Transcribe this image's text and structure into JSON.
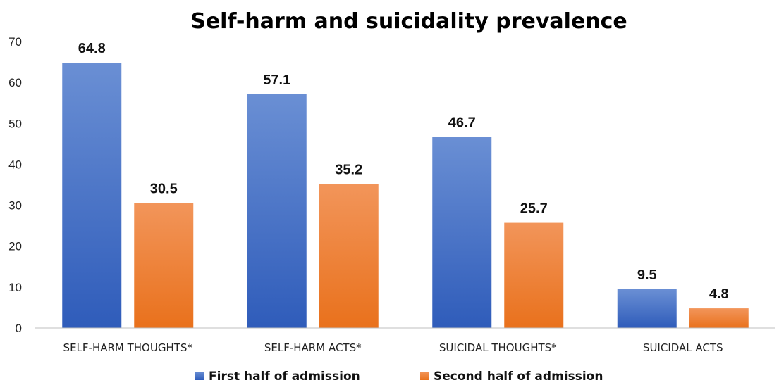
{
  "chart_data": {
    "type": "bar",
    "title": "Self-harm and suicidality prevalence",
    "categories": [
      "SELF-HARM THOUGHTS*",
      "SELF-HARM ACTS*",
      "SUICIDAL THOUGHTS*",
      "SUICIDAL ACTS"
    ],
    "series": [
      {
        "name": "First half of admission",
        "values": [
          64.8,
          57.1,
          46.7,
          9.5
        ],
        "color_top": "#6a8fd4",
        "color_bottom": "#2f5cba"
      },
      {
        "name": "Second half of admission",
        "values": [
          30.5,
          35.2,
          25.7,
          4.8
        ],
        "color_top": "#f2955a",
        "color_bottom": "#e9711c"
      }
    ],
    "ylim": [
      0,
      70
    ],
    "yticks": [
      0,
      10,
      20,
      30,
      40,
      50,
      60,
      70
    ],
    "data_labels": true,
    "grid": false,
    "legend_position": "bottom"
  }
}
